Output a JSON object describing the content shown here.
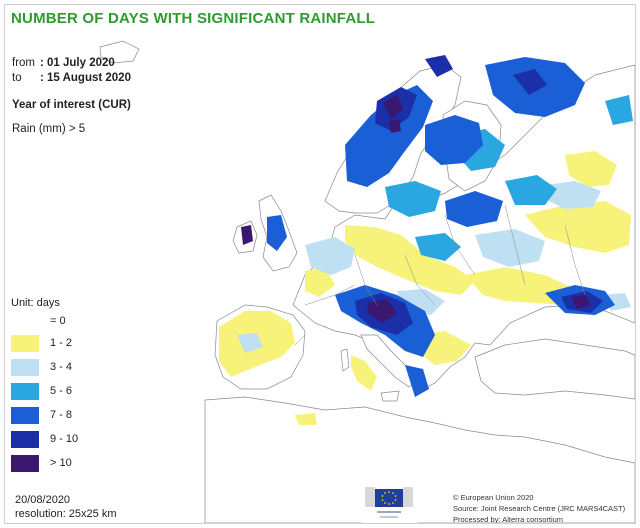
{
  "title": "NUMBER OF DAYS WITH SIGNIFICANT RAINFALL",
  "period": {
    "from_label": "from",
    "from_value": ": 01 July 2020",
    "to_label": "to",
    "to_value": ": 15 August 2020"
  },
  "year_of_interest": "Year of interest (CUR)",
  "threshold": "Rain (mm) > 5",
  "legend": {
    "unit": "Unit:  days",
    "items": [
      {
        "label": "= 0",
        "color": "#ffffff"
      },
      {
        "label": "1 - 2",
        "color": "#f7f37a"
      },
      {
        "label": "3 - 4",
        "color": "#bfe0f3"
      },
      {
        "label": "5 - 6",
        "color": "#2aa7e0"
      },
      {
        "label": "7 - 8",
        "color": "#1a5fd6"
      },
      {
        "label": "9 - 10",
        "color": "#1a2fa8"
      },
      {
        "label": "> 10",
        "color": "#3a1870"
      }
    ]
  },
  "footer": {
    "date": "20/08/2020",
    "resolution": "resolution:  25x25 km",
    "credits": [
      "© European Union 2020",
      "Source: Joint Research Centre (JRC MARS4CAST)",
      "Processed by: Alterra consortium"
    ]
  },
  "colors": {
    "title": "#2e9b2e",
    "land_dry": "#ffffff",
    "border": "#8a8a8a"
  }
}
